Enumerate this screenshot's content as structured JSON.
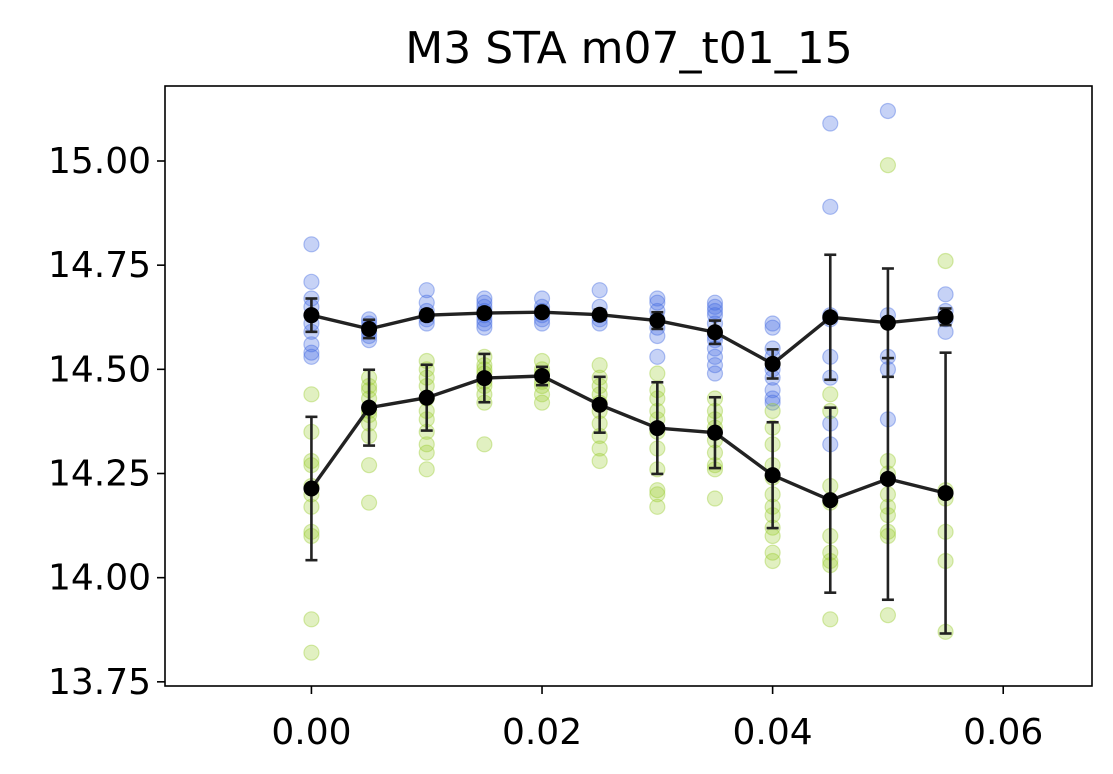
{
  "chart_data": {
    "type": "scatter",
    "title": "M3 STA m07_t01_15",
    "xlabel": "",
    "ylabel": "",
    "xlim": [
      -0.0127,
      0.0677
    ],
    "ylim": [
      13.74,
      15.18
    ],
    "x_ticks": [
      "0.00",
      "0.02",
      "0.04",
      "0.06"
    ],
    "x_tick_values": [
      0.0,
      0.02,
      0.04,
      0.06
    ],
    "y_ticks": [
      "13.75",
      "14.00",
      "14.25",
      "14.50",
      "14.75",
      "15.00"
    ],
    "y_tick_values": [
      13.75,
      14.0,
      14.25,
      14.5,
      14.75,
      15.0
    ],
    "grid": false,
    "colors": {
      "blue": "#4169e1",
      "green": "#9acd32",
      "mean": "#000000",
      "line": "#222222"
    },
    "x": [
      0.0,
      0.005,
      0.01,
      0.015,
      0.02,
      0.025,
      0.03,
      0.035,
      0.04,
      0.045,
      0.05,
      0.055
    ],
    "series": [
      {
        "color": "#4169e1",
        "points": [
          [
            14.8,
            14.71,
            14.67,
            14.65,
            14.63,
            14.61,
            14.59,
            14.56,
            14.54,
            14.53
          ],
          [
            14.62,
            14.61,
            14.6,
            14.59,
            14.58,
            14.57
          ],
          [
            14.69,
            14.66,
            14.64,
            14.63,
            14.62,
            14.61
          ],
          [
            14.67,
            14.66,
            14.65,
            14.64,
            14.63,
            14.62,
            14.61,
            14.6
          ],
          [
            14.67,
            14.65,
            14.64,
            14.63,
            14.62,
            14.61
          ],
          [
            14.69,
            14.65,
            14.63,
            14.62,
            14.61
          ],
          [
            14.67,
            14.66,
            14.64,
            14.62,
            14.6,
            14.58,
            14.53
          ],
          [
            14.66,
            14.65,
            14.64,
            14.63,
            14.61,
            14.58,
            14.57,
            14.55,
            14.53,
            14.51,
            14.49
          ],
          [
            14.61,
            14.6,
            14.55,
            14.53,
            14.5,
            14.48,
            14.45,
            14.43,
            14.42
          ],
          [
            15.09,
            14.89,
            14.63,
            14.62,
            14.53,
            14.48,
            14.37,
            14.32
          ],
          [
            15.12,
            14.63,
            14.53,
            14.5,
            14.38
          ],
          [
            14.68,
            14.64,
            14.62,
            14.59
          ]
        ],
        "mean": [
          14.63,
          14.597,
          14.63,
          14.635,
          14.637,
          14.631,
          14.617,
          14.589,
          14.513,
          14.625,
          14.612,
          14.626
        ],
        "err": [
          0.04,
          0.022,
          0.012,
          0.012,
          0.01,
          0.012,
          0.02,
          0.028,
          0.035,
          0.15,
          0.13,
          0.02
        ]
      },
      {
        "color": "#9acd32",
        "points": [
          [
            14.44,
            14.35,
            14.28,
            14.27,
            14.22,
            14.2,
            14.17,
            14.11,
            14.1,
            13.9,
            13.82
          ],
          [
            14.48,
            14.46,
            14.45,
            14.43,
            14.4,
            14.39,
            14.37,
            14.34,
            14.27,
            14.18
          ],
          [
            14.52,
            14.5,
            14.48,
            14.46,
            14.43,
            14.4,
            14.38,
            14.35,
            14.32,
            14.3,
            14.26
          ],
          [
            14.53,
            14.51,
            14.5,
            14.49,
            14.47,
            14.46,
            14.44,
            14.42,
            14.32
          ],
          [
            14.52,
            14.5,
            14.49,
            14.47,
            14.46,
            14.44,
            14.42
          ],
          [
            14.51,
            14.48,
            14.46,
            14.44,
            14.42,
            14.4,
            14.37,
            14.34,
            14.31,
            14.28
          ],
          [
            14.49,
            14.45,
            14.43,
            14.4,
            14.38,
            14.35,
            14.31,
            14.26,
            14.21,
            14.2,
            14.17
          ],
          [
            14.43,
            14.4,
            14.38,
            14.36,
            14.33,
            14.3,
            14.27,
            14.26,
            14.19
          ],
          [
            14.4,
            14.36,
            14.32,
            14.27,
            14.24,
            14.2,
            14.17,
            14.15,
            14.12,
            14.1,
            14.06,
            14.04
          ],
          [
            14.44,
            14.4,
            14.22,
            14.18,
            14.1,
            14.06,
            14.04,
            14.03,
            13.9
          ],
          [
            14.99,
            14.28,
            14.25,
            14.2,
            14.17,
            14.15,
            14.11,
            14.1,
            13.91
          ],
          [
            14.76,
            14.21,
            14.19,
            14.11,
            14.04,
            13.87
          ]
        ],
        "mean": [
          14.214,
          14.408,
          14.432,
          14.479,
          14.484,
          14.415,
          14.359,
          14.348,
          14.246,
          14.186,
          14.237,
          14.203
        ],
        "err": [
          0.172,
          0.091,
          0.079,
          0.058,
          0.022,
          0.067,
          0.11,
          0.085,
          0.127,
          0.222,
          0.29,
          0.337
        ]
      }
    ]
  }
}
